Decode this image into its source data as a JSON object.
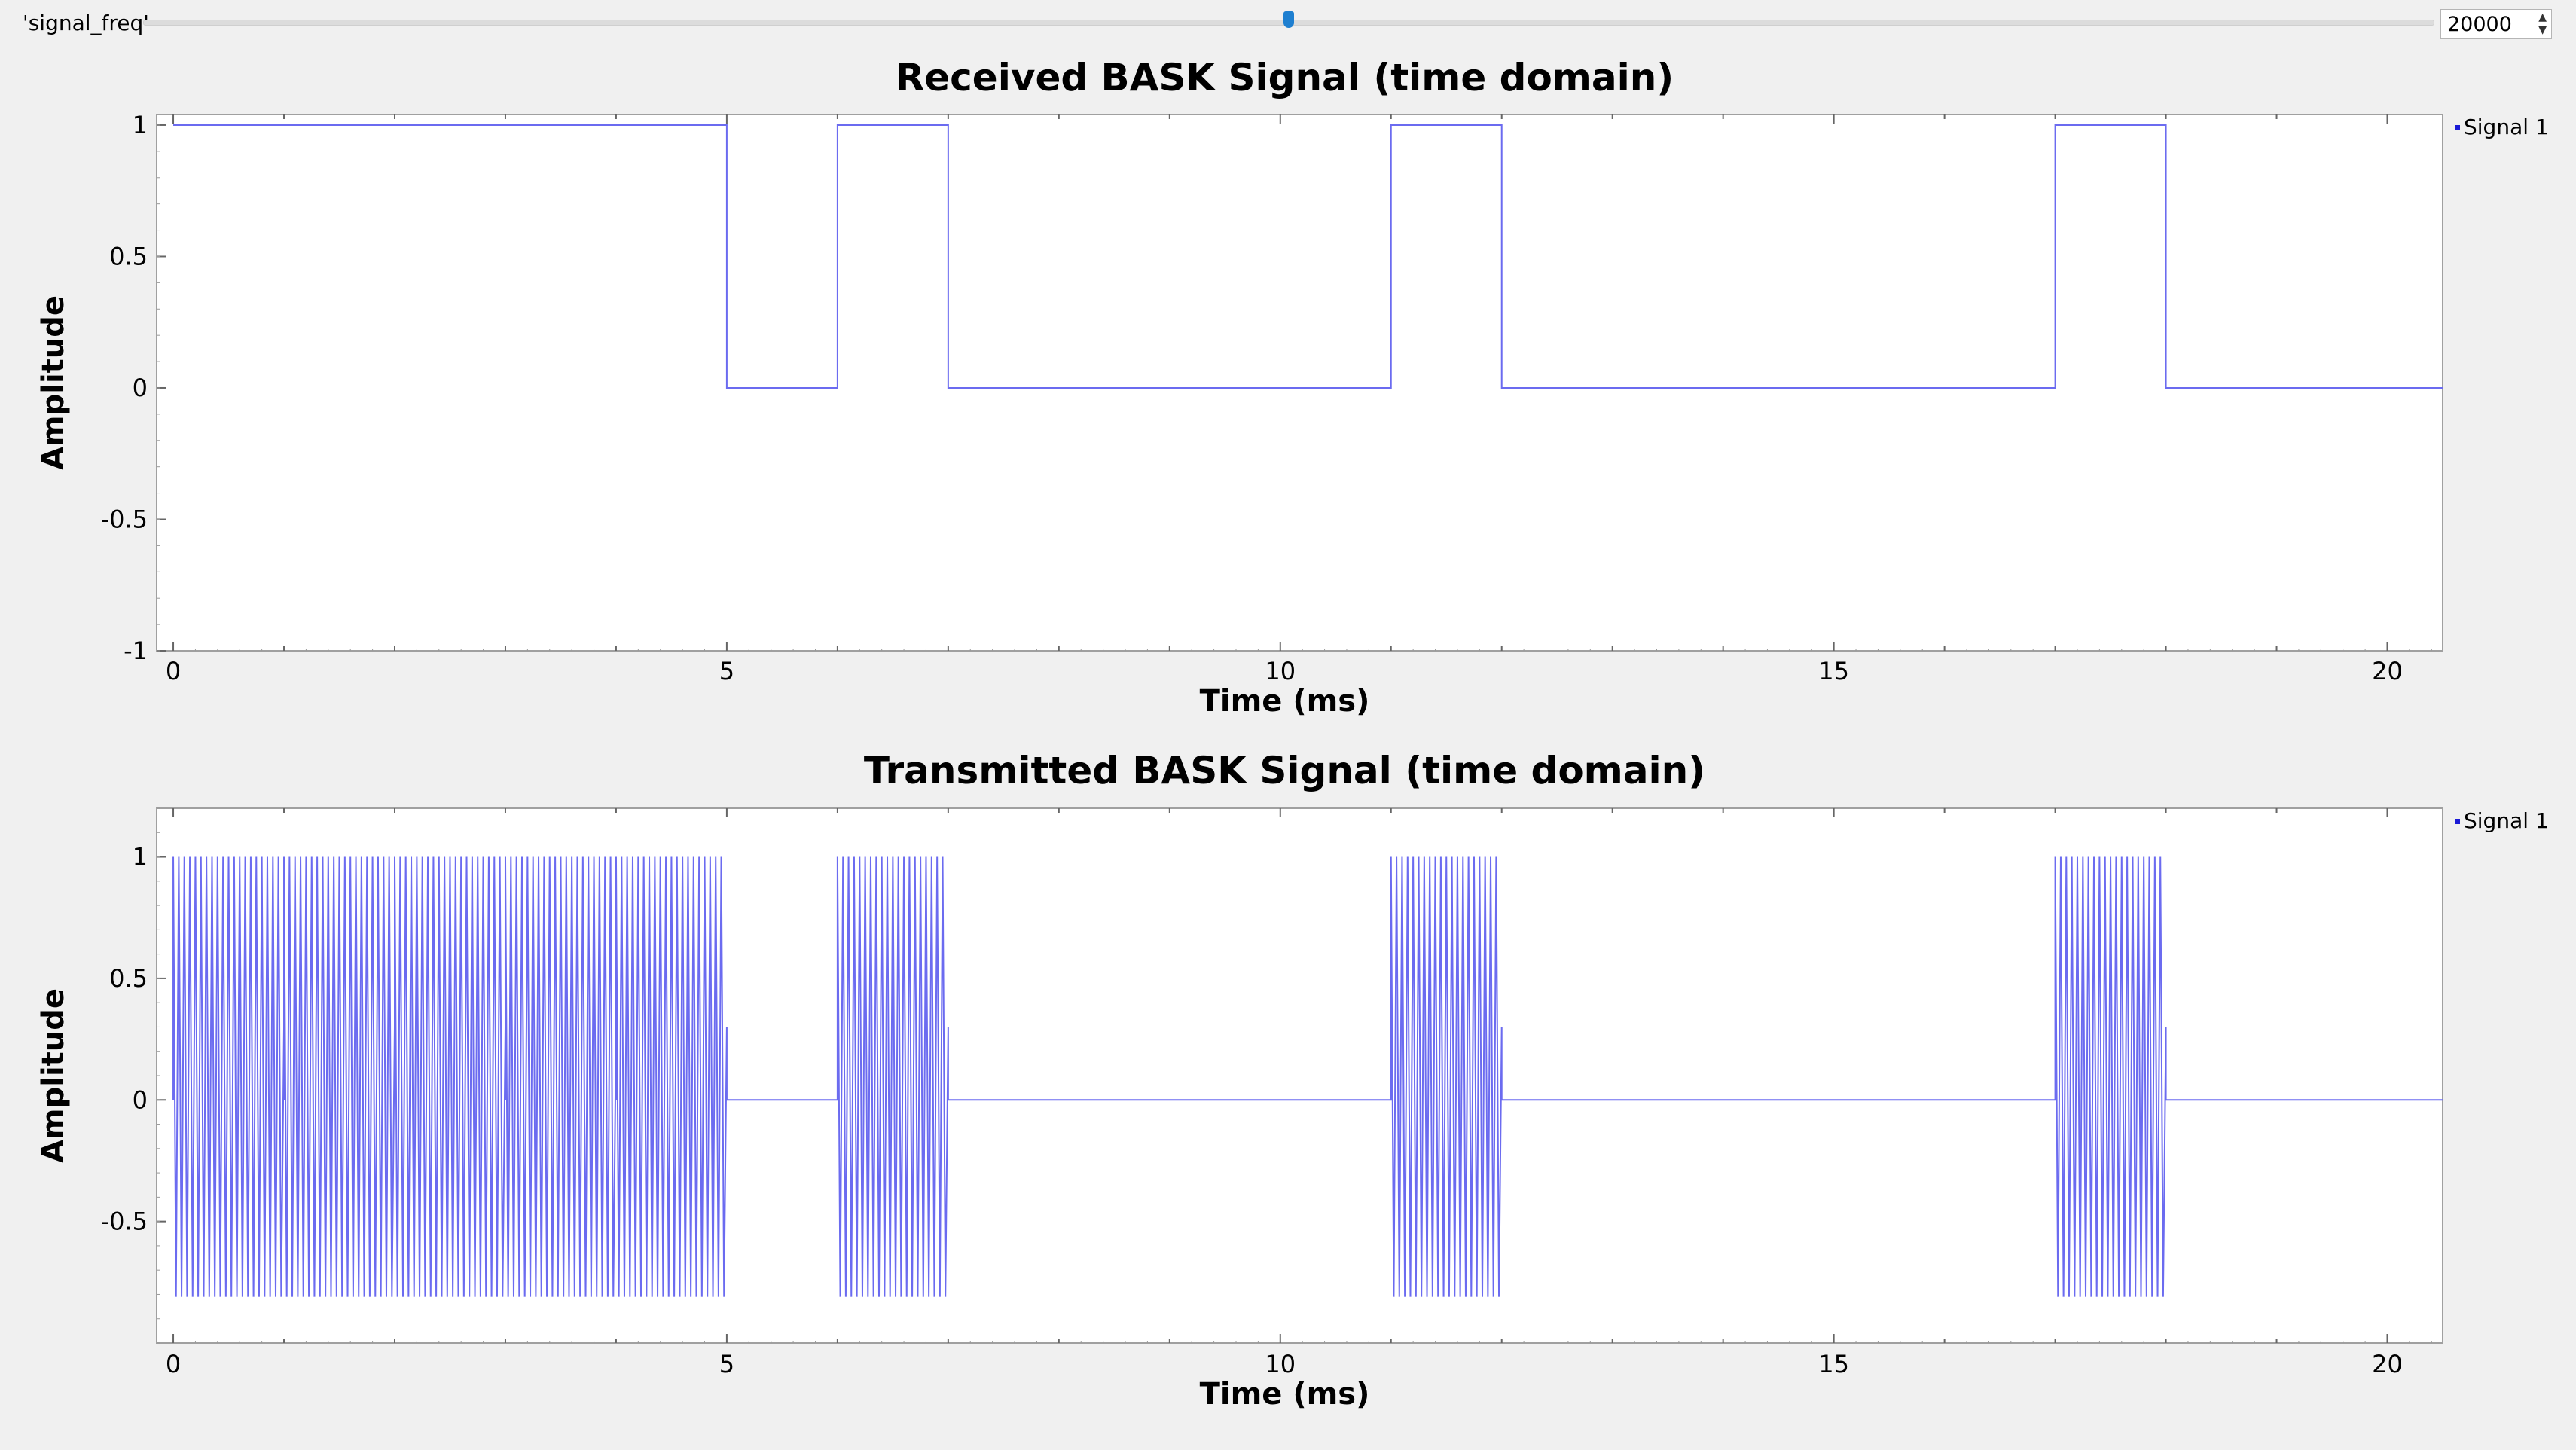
{
  "window": {
    "slider": {
      "label": "'signal_freq'",
      "value": "20000",
      "position": 0.5
    }
  },
  "colors": {
    "signal": "#6b6bf0",
    "legend_marker": "#1a1ad6",
    "frame": "#a0a0a0"
  },
  "chart_data": [
    {
      "type": "line",
      "title": "Received BASK Signal (time domain)",
      "xlabel": "Time (ms)",
      "ylabel": "Amplitude",
      "xlim": [
        -0.15,
        20.5
      ],
      "ylim": [
        -1,
        1.04
      ],
      "xticks": [
        0,
        5,
        10,
        15,
        20
      ],
      "xtick_labels": [
        "0",
        "5",
        "10",
        "15",
        "20"
      ],
      "yticks": [
        1,
        0.5,
        0,
        -0.5,
        -1
      ],
      "ytick_labels": [
        "1",
        "0.5",
        "0",
        "-0.5",
        "-1"
      ],
      "legend": {
        "position": "top-right",
        "entries": [
          "Signal 1"
        ]
      },
      "series": [
        {
          "name": "Signal 1",
          "bits": [
            1,
            1,
            1,
            1,
            1,
            0,
            1,
            0,
            0,
            0,
            0,
            1,
            0,
            0,
            0,
            0,
            0,
            1,
            0,
            0,
            0
          ],
          "bit_duration_ms": 1,
          "high": 1,
          "low": 0,
          "x_end": 20.5
        }
      ]
    },
    {
      "type": "line",
      "title": "Transmitted BASK Signal (time domain)",
      "xlabel": "Time (ms)",
      "ylabel": "Amplitude",
      "xlim": [
        -0.15,
        20.5
      ],
      "ylim": [
        -1,
        1.2
      ],
      "xticks": [
        0,
        5,
        10,
        15,
        20
      ],
      "xtick_labels": [
        "0",
        "5",
        "10",
        "15",
        "20"
      ],
      "yticks": [
        1,
        0.5,
        0,
        -0.5
      ],
      "ytick_labels": [
        "1",
        "0.5",
        "0",
        "-0.5"
      ],
      "legend": {
        "position": "top-right",
        "entries": [
          "Signal 1"
        ]
      },
      "series": [
        {
          "name": "Signal 1",
          "bits": [
            1,
            1,
            1,
            1,
            1,
            0,
            1,
            0,
            0,
            0,
            0,
            1,
            0,
            0,
            0,
            0,
            0,
            1,
            0,
            0,
            0
          ],
          "bit_duration_ms": 1,
          "carrier_cycles_per_ms": 20,
          "high": 1,
          "low": -0.81,
          "x_end": 20.5
        }
      ]
    }
  ]
}
